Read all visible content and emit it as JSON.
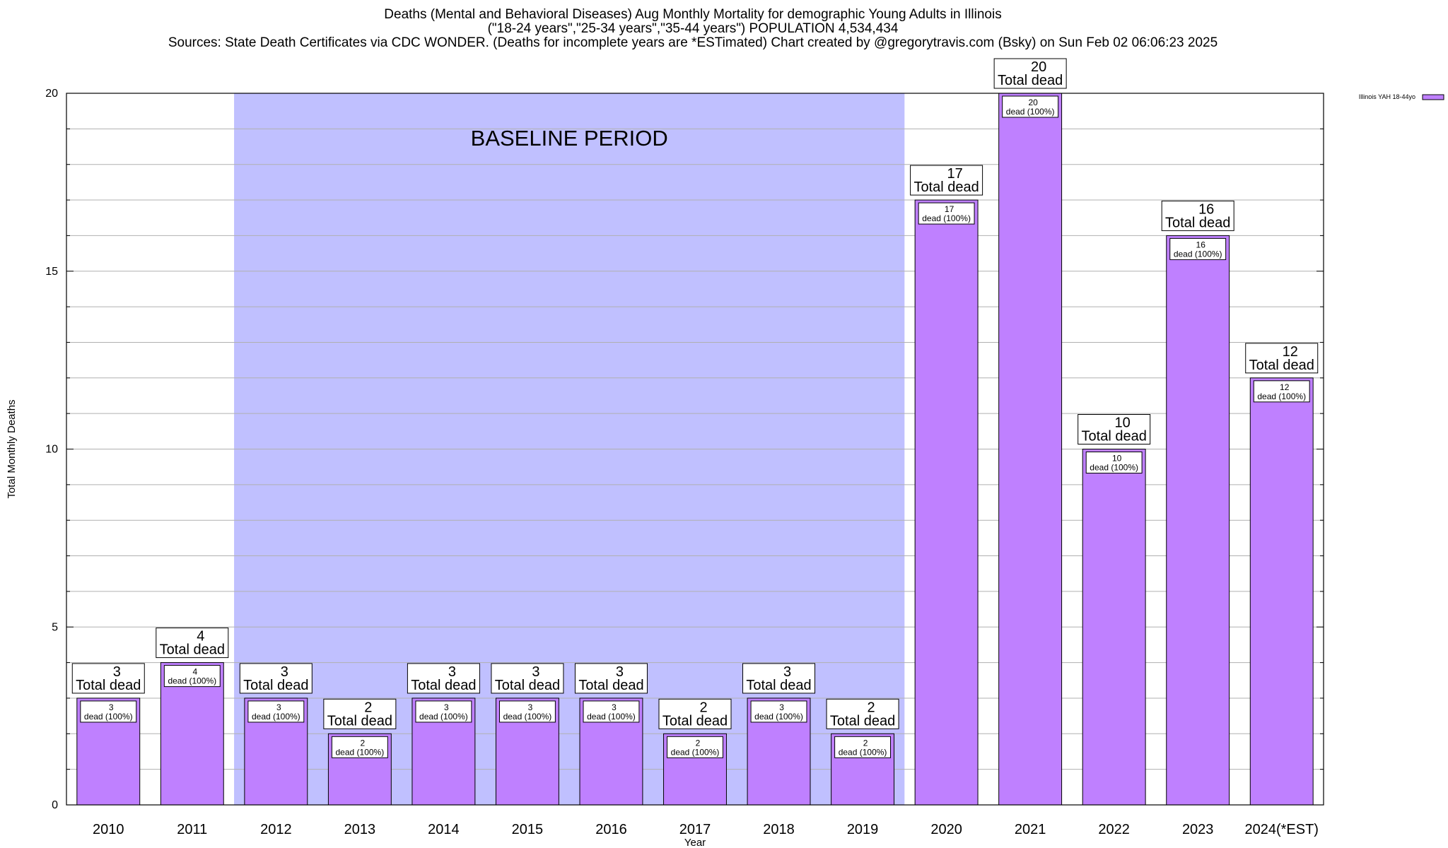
{
  "chart_data": {
    "type": "bar",
    "title_lines": [
      "Deaths (Mental and Behavioral Diseases) Aug Monthly Mortality for demographic Young Adults in Illinois",
      "(\"18-24 years\",\"25-34 years\",\"35-44 years\") POPULATION 4,534,434",
      "Sources: State Death Certificates via CDC WONDER. (Deaths for incomplete years are *ESTimated)                Chart created by @gregorytravis.com (Bsky) on Sun Feb 02 06:06:23 2025"
    ],
    "xlabel": "Year",
    "ylabel": "Total Monthly Deaths",
    "ylim": [
      0,
      20
    ],
    "yticks": [
      0,
      5,
      10,
      15,
      20
    ],
    "grid": true,
    "legend_position": "top-right",
    "categories": [
      "2010",
      "2011",
      "2012",
      "2013",
      "2014",
      "2015",
      "2016",
      "2017",
      "2018",
      "2019",
      "2020",
      "2021",
      "2022",
      "2023",
      "2024(*EST)"
    ],
    "series": [
      {
        "name": "Illinois YAH 18-44yo",
        "color": "#bf80ff",
        "values": [
          3,
          4,
          3,
          2,
          3,
          3,
          3,
          2,
          3,
          2,
          17,
          20,
          10,
          16,
          12
        ]
      }
    ],
    "total_label_text": "Total dead",
    "inner_label_text": "dead (100%)",
    "baseline": {
      "label": "BASELINE PERIOD",
      "start_category": "2012",
      "end_category": "2019",
      "color": "#c0c0ff"
    }
  }
}
